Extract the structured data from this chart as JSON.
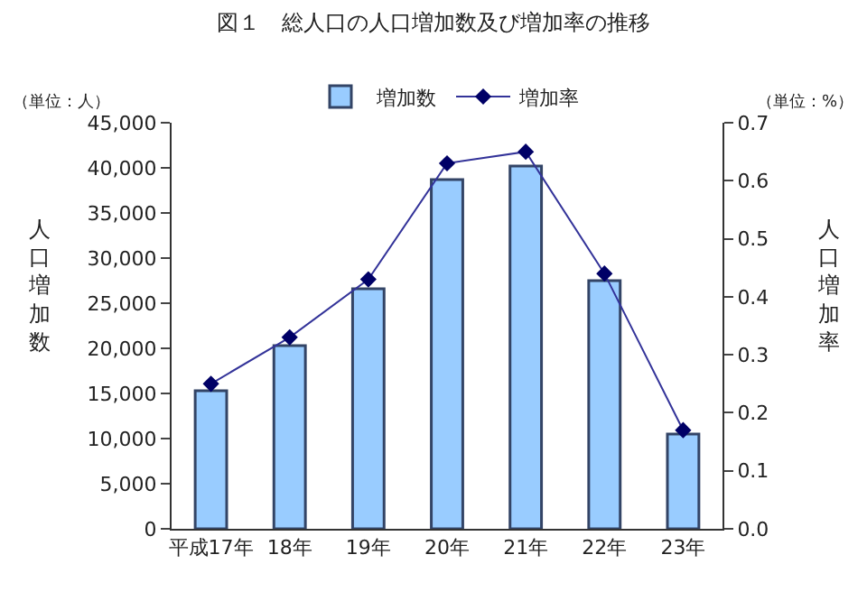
{
  "chart_data": {
    "type": "bar",
    "title": "図１　総人口の人口増加数及び増加率の推移",
    "categories": [
      "平成17年",
      "18年",
      "19年",
      "20年",
      "21年",
      "22年",
      "23年"
    ],
    "series": [
      {
        "name": "増加数",
        "color": "#99ccff",
        "values": [
          15300,
          20300,
          26600,
          38700,
          40200,
          27500,
          10500
        ]
      },
      {
        "name": "増加率",
        "type": "line",
        "axis": "y2",
        "color": "#333399",
        "marker": "diamond",
        "values": [
          0.25,
          0.33,
          0.43,
          0.63,
          0.65,
          0.44,
          0.17
        ]
      }
    ],
    "ylabel": "人口増加数",
    "y2label": "人口増加率",
    "annotations": [
      "（単位：人）",
      "（単位：%）"
    ],
    "ylim": [
      0,
      45000
    ],
    "yticks": [
      {
        "value": 0,
        "label": "0"
      },
      {
        "value": 5000,
        "label": "5,000"
      },
      {
        "value": 10000,
        "label": "10,000"
      },
      {
        "value": 15000,
        "label": "15,000"
      },
      {
        "value": 20000,
        "label": "20,000"
      },
      {
        "value": 25000,
        "label": "25,000"
      },
      {
        "value": 30000,
        "label": "30,000"
      },
      {
        "value": 35000,
        "label": "35,000"
      },
      {
        "value": 40000,
        "label": "40,000"
      },
      {
        "value": 45000,
        "label": "45,000"
      }
    ],
    "y2lim": [
      0,
      0.7
    ],
    "y2ticks": [
      {
        "value": 0,
        "label": "0.0"
      },
      0.1,
      0.2,
      0.3,
      0.4,
      0.5,
      0.6,
      0.7
    ],
    "legend": "top"
  }
}
